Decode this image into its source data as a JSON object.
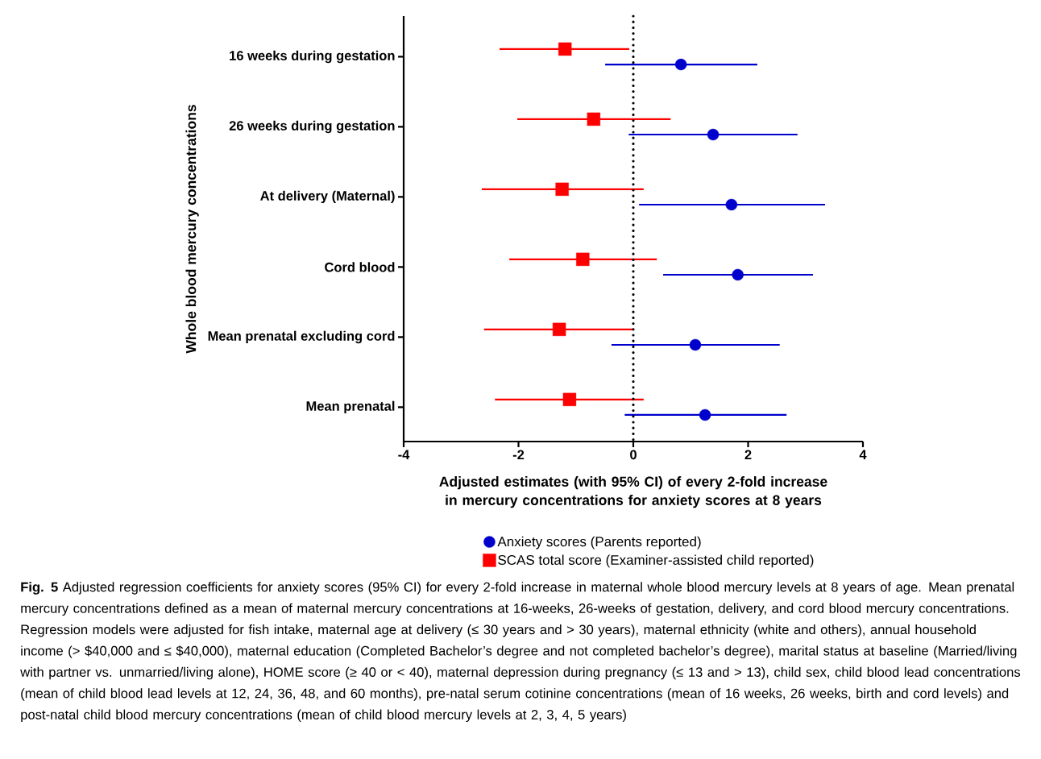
{
  "chart_data": {
    "type": "scatter",
    "orientation": "horizontal",
    "ylabel": "Whole blood mercury concentrations",
    "xlabel": "Adjusted estimates (with 95% CI) of every 2-fold increase in mercury concentrations for anxiety scores at 8 years",
    "categories": [
      "16 weeks during gestation",
      "26 weeks during gestation",
      "At delivery (Maternal)",
      "Cord blood",
      "Mean prenatal excluding cord",
      "Mean prenatal"
    ],
    "xlim": [
      -4,
      4
    ],
    "xticks": [
      -4,
      -2,
      0,
      2,
      4
    ],
    "ref_lines": [
      {
        "axis": "x",
        "value": 0,
        "line_style": "dotted",
        "color": "#000000"
      }
    ],
    "legend": "bottom",
    "series": [
      {
        "name": "Anxiety scores (Parents reported)",
        "color": "#0000cc",
        "marker": "circle",
        "values": [
          0.83,
          1.39,
          1.71,
          1.82,
          1.08,
          1.25
        ],
        "errors": [
          [
            -0.49,
            2.16
          ],
          [
            -0.08,
            2.86
          ],
          [
            0.1,
            3.34
          ],
          [
            0.52,
            3.13
          ],
          [
            -0.38,
            2.55
          ],
          [
            -0.15,
            2.67
          ]
        ]
      },
      {
        "name": "SCAS total score (Examiner-assisted child reported)",
        "color": "#ff0000",
        "marker": "square",
        "values": [
          -1.19,
          -0.69,
          -1.24,
          -0.88,
          -1.29,
          -1.11
        ],
        "errors": [
          [
            -2.33,
            -0.07
          ],
          [
            -2.02,
            0.65
          ],
          [
            -2.64,
            0.18
          ],
          [
            -2.16,
            0.41
          ],
          [
            -2.6,
            0.01
          ],
          [
            -2.41,
            0.18
          ]
        ]
      }
    ],
    "annotations": [
      "**Fig. 5** Adjusted regression coefficients for anxiety scores (95% CI) for every 2-fold increase in maternal whole blood mercury levels at 8 years of age. Mean prenatal mercury concentrations defined as a mean of maternal mercury concentrations at 16-weeks, 26-weeks of gestation, delivery, and cord blood mercury concentrations. Regression models were adjusted for fish intake, maternal age at delivery (≤ 30 years and > 30 years), maternal ethnicity (white and others), annual household income (> $40,000 and ≤ $40,000), maternal education (Completed Bachelor’s degree and not completed bachelor’s degree), marital status at baseline (Married/living with partner vs. unmarried/living alone), HOME score (≥ 40 or < 40), maternal depression during pregnancy (≤ 13 and > 13), child sex, child blood lead concentrations (mean of child blood lead levels at 12, 24, 36, 48, and 60 months), pre-natal serum cotinine concentrations (mean of 16 weeks, 26 weeks, birth and cord levels) and post-natal child blood mercury concentrations (mean of child blood mercury levels at 2, 3, 4, 5 years)"
    ]
  }
}
